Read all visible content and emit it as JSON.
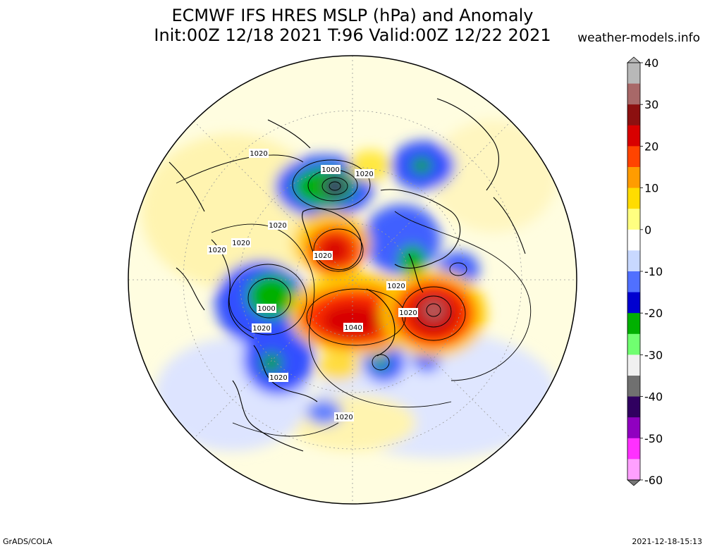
{
  "header": {
    "title_line1": "ECMWF IFS HRES MSLP (hPa) and Anomaly",
    "title_line2": "Init:00Z 12/18 2021 T:96 Valid:00Z 12/22 2021",
    "site": "weather-models.info"
  },
  "footer": {
    "left": "GrADS/COLA",
    "right": "2021-12-18-15:13"
  },
  "colorbar": {
    "ticks": [
      "40",
      "30",
      "20",
      "10",
      "0",
      "-10",
      "-20",
      "-30",
      "-40",
      "-50",
      "-60"
    ],
    "colors": [
      "#b8b8b8",
      "#a86868",
      "#8c1010",
      "#d80000",
      "#ff4400",
      "#ff9c00",
      "#ffdc00",
      "#ffff80",
      "#ffffff",
      "#c8d8ff",
      "#5070ff",
      "#0000d0",
      "#00b000",
      "#70ff70",
      "#f0f0f0",
      "#707070",
      "#300060",
      "#9000c0",
      "#ff30ff",
      "#ffa0ff"
    ]
  },
  "isobar_labels": [
    {
      "id": "1",
      "text": "1000"
    },
    {
      "id": "2",
      "text": "1020"
    },
    {
      "id": "3",
      "text": "1020"
    },
    {
      "id": "4",
      "text": "1020"
    },
    {
      "id": "5",
      "text": "1020"
    },
    {
      "id": "6",
      "text": "1020"
    },
    {
      "id": "7",
      "text": "1020"
    },
    {
      "id": "8",
      "text": "1020"
    },
    {
      "id": "9",
      "text": "1020"
    },
    {
      "id": "10",
      "text": "1000"
    },
    {
      "id": "11",
      "text": "1020"
    },
    {
      "id": "12",
      "text": "1040"
    },
    {
      "id": "13",
      "text": "1020"
    },
    {
      "id": "14",
      "text": "1020"
    },
    {
      "id": "15",
      "text": "1020"
    }
  ]
}
